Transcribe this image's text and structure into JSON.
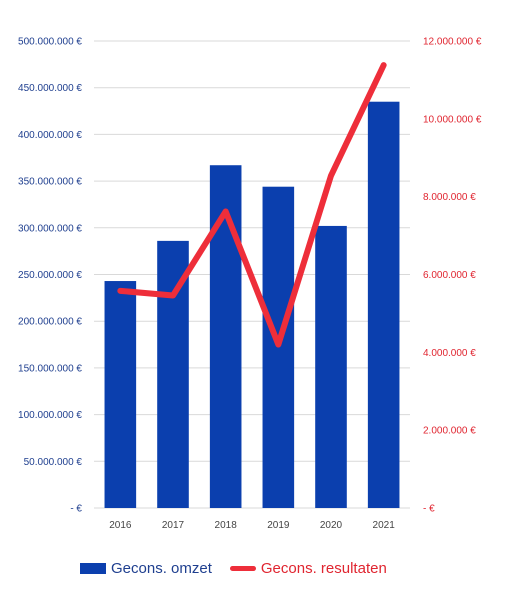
{
  "chart_data": {
    "type": "bar+line",
    "categories": [
      "2016",
      "2017",
      "2018",
      "2019",
      "2020",
      "2021"
    ],
    "series": [
      {
        "name": "Gecons. omzet",
        "type": "bar",
        "axis": "left",
        "color": "#0b3fae",
        "values": [
          243000000,
          286000000,
          367000000,
          344000000,
          302000000,
          435000000
        ]
      },
      {
        "name": "Gecons. resultaten",
        "type": "line",
        "axis": "right",
        "color": "#ee2e3a",
        "values": [
          5580000,
          5460000,
          7620000,
          4200000,
          8540000,
          11380000
        ]
      }
    ],
    "y_left": {
      "min": 0,
      "max": 500000000,
      "ticks": [
        "-  €",
        "50.000.000 €",
        "100.000.000 €",
        "150.000.000 €",
        "200.000.000 €",
        "250.000.000 €",
        "300.000.000 €",
        "350.000.000 €",
        "400.000.000 €",
        "450.000.000 €",
        "500.000.000 €"
      ]
    },
    "y_right": {
      "min": 0,
      "max": 12000000,
      "ticks": [
        "-  €",
        "2.000.000 €",
        "4.000.000 €",
        "6.000.000 €",
        "8.000.000 €",
        "10.000.000 €",
        "12.000.000 €"
      ]
    },
    "grid": true,
    "legend_position": "bottom"
  }
}
